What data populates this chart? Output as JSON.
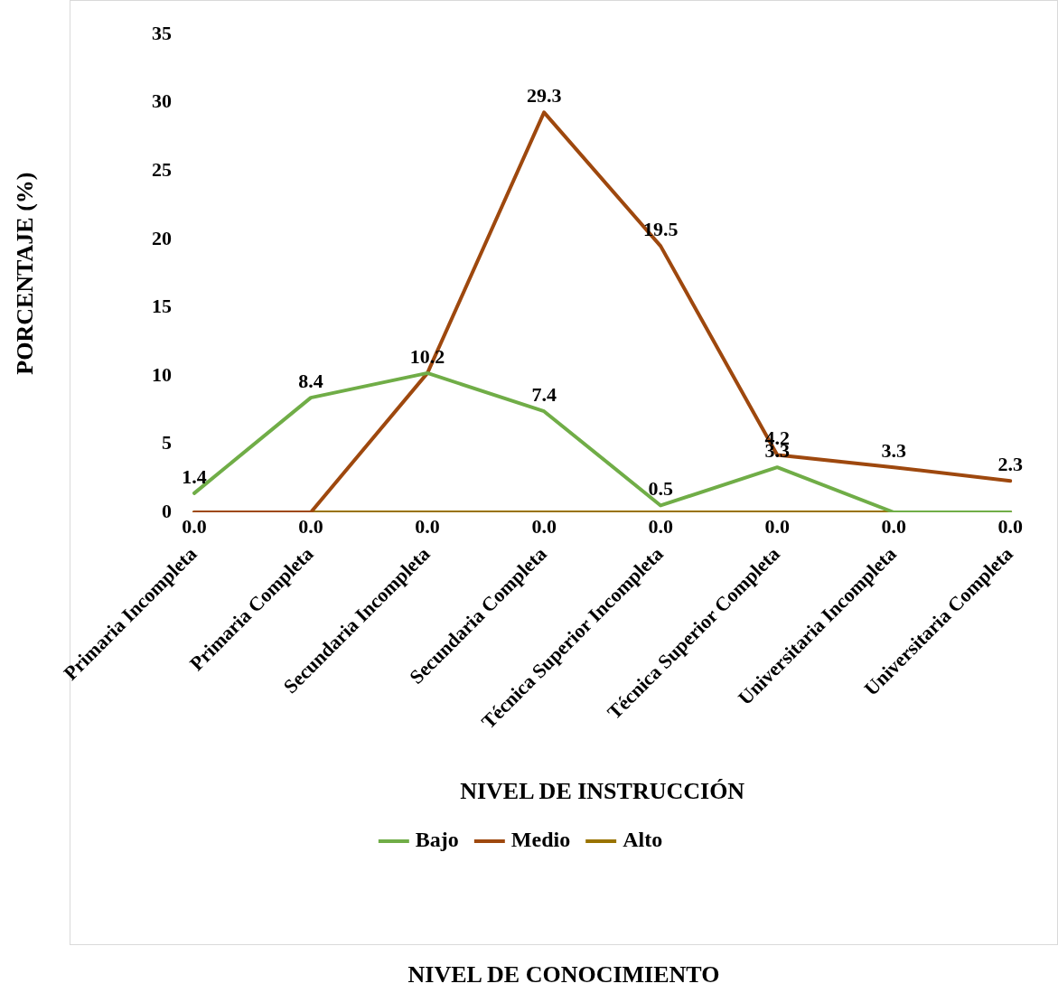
{
  "chart_data": {
    "type": "line",
    "xlabel": "NIVEL DE INSTRUCCIÓN",
    "ylabel": "PORCENTAJE (%)",
    "categories": [
      "Primaria Incompleta",
      "Primaria Completa",
      "Secundaria Incompleta",
      "Secundaria Completa",
      "Técnica Superior Incompleta",
      "Técnica Superior Completa",
      "Universitaria Incompleta",
      "Universitaria Completa"
    ],
    "series": [
      {
        "name": "Bajo",
        "color": "#70ad47",
        "values": [
          1.4,
          8.4,
          10.2,
          7.4,
          0.5,
          3.3,
          0.0,
          0.0
        ],
        "value_labels": [
          "1.4",
          "8.4",
          "10.2",
          "7.4",
          "0.5",
          "3.3",
          "0.0",
          "0.0"
        ]
      },
      {
        "name": "Medio",
        "color": "#9e480e",
        "values": [
          0.0,
          0.0,
          10.2,
          29.3,
          19.5,
          4.2,
          3.3,
          2.3
        ],
        "value_labels": [
          "0.0",
          "0.0",
          null,
          "29.3",
          "19.5",
          "4.2",
          "3.3",
          "2.3"
        ]
      },
      {
        "name": "Alto",
        "color": "#997300",
        "values": [
          0.0,
          0.0,
          0.0,
          0.0,
          0.0,
          0.0,
          0.0,
          0.0
        ],
        "value_labels": [
          null,
          null,
          "0.0",
          "0.0",
          "0.0",
          "0.0",
          null,
          null
        ]
      }
    ],
    "ylim": [
      0,
      35
    ],
    "yticks": [
      0,
      5,
      10,
      15,
      20,
      25,
      30,
      35
    ],
    "grid": false,
    "legend": "bottom",
    "marker": "none",
    "line_style": "solid",
    "annotations": [
      "NIVEL DE CONOCIMIENTO"
    ]
  }
}
